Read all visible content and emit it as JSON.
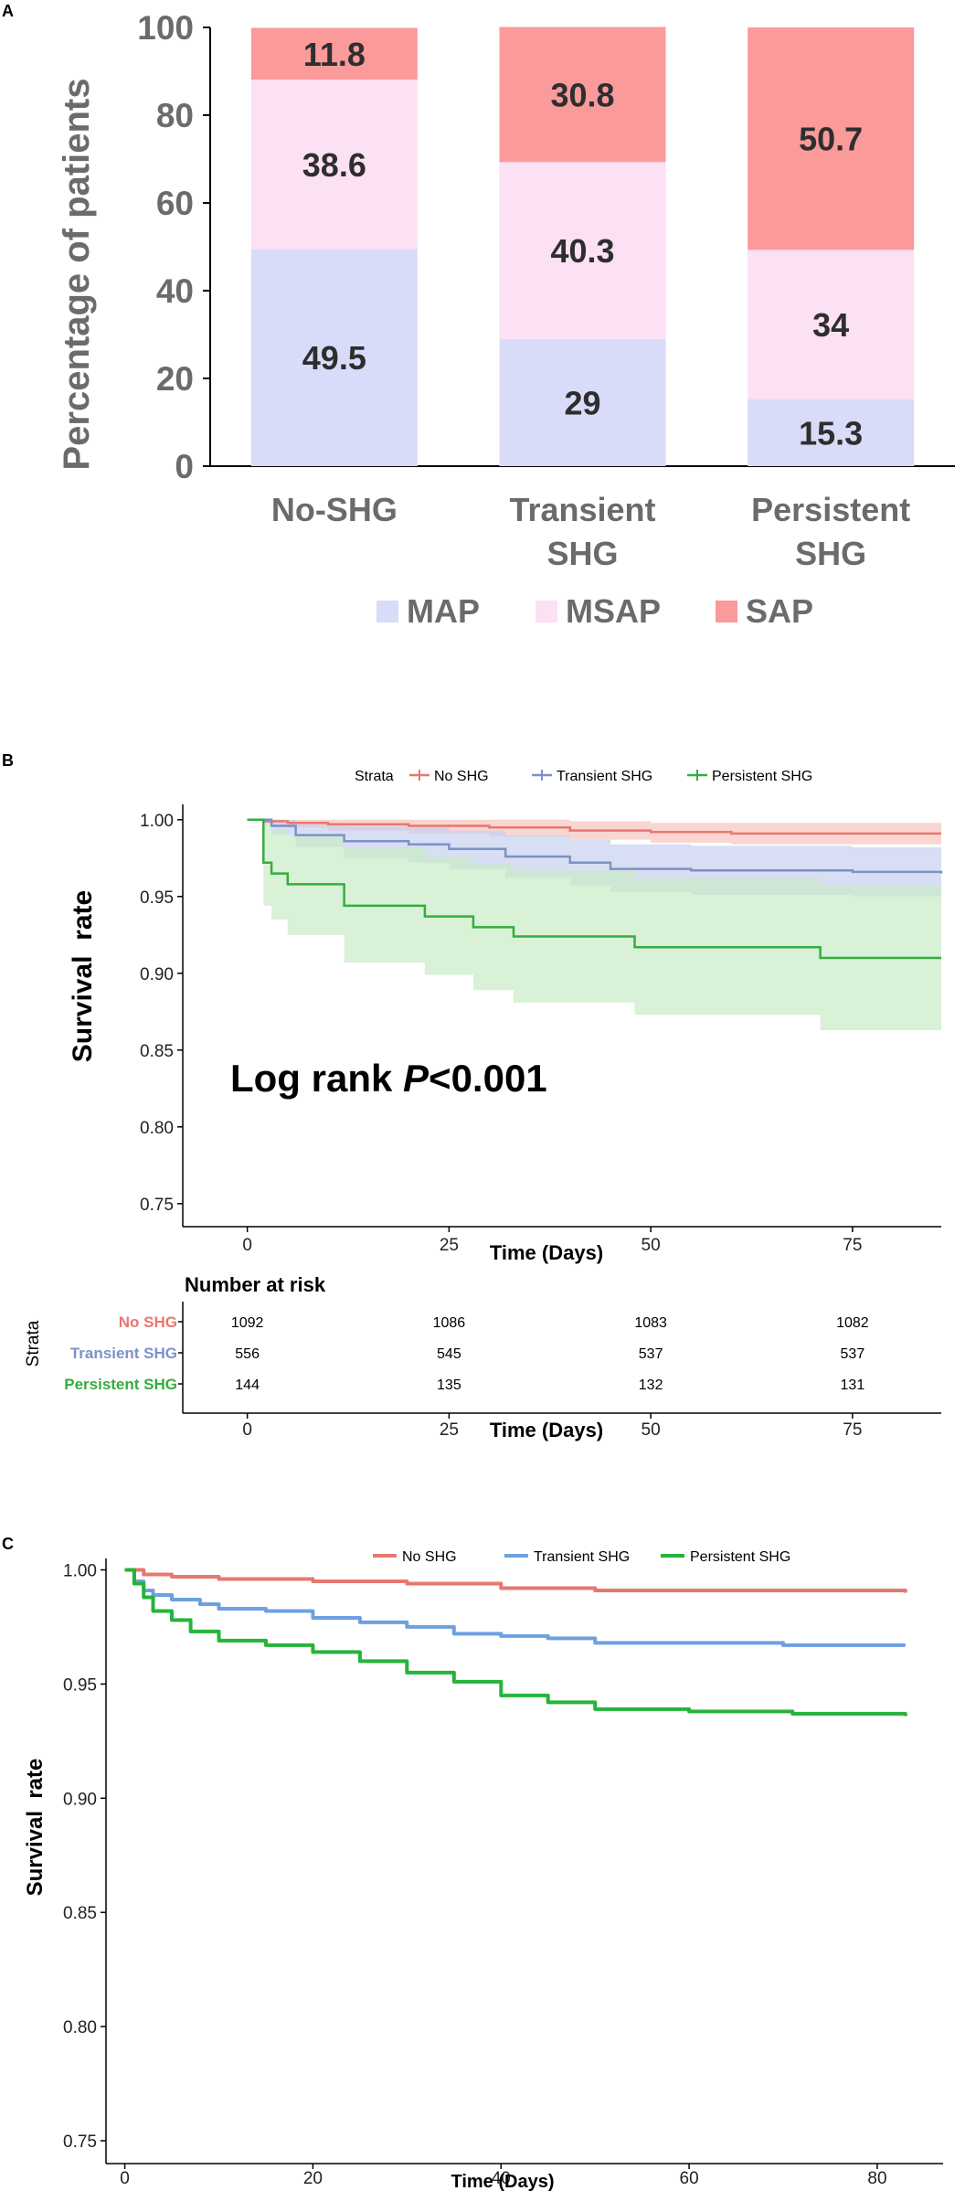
{
  "chart_data": [
    {
      "panel": "A",
      "type": "bar",
      "stacked": true,
      "categories": [
        [
          "No-SHG"
        ],
        [
          "Transient",
          "SHG"
        ],
        [
          "Persistent",
          "SHG"
        ]
      ],
      "series": [
        {
          "name": "MAP",
          "values": [
            49.5,
            29,
            15.3
          ],
          "labels": [
            "49.5",
            "29",
            "15.3"
          ],
          "color": "#d8dcf8"
        },
        {
          "name": "MSAP",
          "values": [
            38.6,
            40.3,
            34
          ],
          "labels": [
            "38.6",
            "40.3",
            "34"
          ],
          "color": "#fce0f4"
        },
        {
          "name": "SAP",
          "values": [
            11.8,
            30.8,
            50.7
          ],
          "labels": [
            "11.8",
            "30.8",
            "50.7"
          ],
          "color": "#fa9a9a"
        }
      ],
      "ylabel": "Percentage of patients",
      "yticks": [
        0,
        20,
        40,
        60,
        80,
        100
      ],
      "ylim": [
        0,
        100
      ],
      "legend_position": "bottom"
    },
    {
      "panel": "B",
      "type": "line",
      "subtype": "kaplan-meier",
      "legend_title": "Strata",
      "series": [
        {
          "name": "No SHG",
          "color": "#e8776f",
          "band_color": "#f6c4be",
          "x": [
            0,
            2,
            5,
            10,
            20,
            30,
            40,
            50,
            60,
            70,
            86
          ],
          "y": [
            1.0,
            0.999,
            0.998,
            0.997,
            0.996,
            0.995,
            0.993,
            0.992,
            0.991,
            0.991,
            0.991
          ],
          "lower": [
            1.0,
            0.997,
            0.995,
            0.993,
            0.991,
            0.989,
            0.987,
            0.985,
            0.984,
            0.984,
            0.984
          ],
          "upper": [
            1.0,
            1.0,
            1.0,
            1.0,
            1.0,
            1.0,
            0.999,
            0.998,
            0.998,
            0.998,
            0.998
          ]
        },
        {
          "name": "Transient SHG",
          "color": "#7b92c8",
          "band_color": "#c7d0ef",
          "x": [
            0,
            3,
            6,
            12,
            20,
            25,
            32,
            40,
            45,
            55,
            75,
            86
          ],
          "y": [
            1.0,
            0.996,
            0.99,
            0.986,
            0.984,
            0.981,
            0.976,
            0.972,
            0.968,
            0.967,
            0.966,
            0.965
          ],
          "lower": [
            1.0,
            0.99,
            0.982,
            0.975,
            0.972,
            0.968,
            0.962,
            0.957,
            0.953,
            0.951,
            0.95,
            0.949
          ],
          "upper": [
            1.0,
            1.0,
            0.998,
            0.996,
            0.995,
            0.993,
            0.99,
            0.987,
            0.984,
            0.983,
            0.982,
            0.981
          ]
        },
        {
          "name": "Persistent SHG",
          "color": "#34ae3c",
          "band_color": "#c9ebc6",
          "x": [
            0,
            2,
            3,
            5,
            12,
            22,
            28,
            33,
            48,
            71,
            86
          ],
          "y": [
            1.0,
            0.972,
            0.965,
            0.958,
            0.944,
            0.937,
            0.93,
            0.924,
            0.917,
            0.91,
            0.91
          ],
          "lower": [
            1.0,
            0.944,
            0.935,
            0.925,
            0.907,
            0.899,
            0.889,
            0.881,
            0.873,
            0.863,
            0.863
          ],
          "upper": [
            1.0,
            0.997,
            0.994,
            0.99,
            0.982,
            0.976,
            0.971,
            0.967,
            0.962,
            0.957,
            0.957
          ]
        }
      ],
      "xlabel": "Time (Days)",
      "ylabel": "Survival  rate",
      "xticks": [
        0,
        25,
        50,
        75
      ],
      "yticks": [
        0.75,
        0.8,
        0.85,
        0.9,
        0.95,
        1.0
      ],
      "ytick_labels": [
        "0.75",
        "0.80",
        "0.85",
        "0.90",
        "0.95",
        "1.00"
      ],
      "xlim": [
        -8,
        86
      ],
      "ylim": [
        0.735,
        1.01
      ],
      "annotation": {
        "prefix": "Log rank ",
        "italic": "P",
        "suffix": "<0.001"
      },
      "risk_table": {
        "title": "Number at risk",
        "row_axis_label": "Strata",
        "xlabel": "Time (Days)",
        "time_points": [
          0,
          25,
          50,
          75
        ],
        "rows": [
          {
            "name": "No SHG",
            "values": [
              "1092",
              "1086",
              "1083",
              "1082"
            ]
          },
          {
            "name": "Transient SHG",
            "values": [
              "556",
              "545",
              "537",
              "537"
            ]
          },
          {
            "name": "Persistent SHG",
            "values": [
              "144",
              "135",
              "132",
              "131"
            ]
          }
        ]
      }
    },
    {
      "panel": "C",
      "type": "line",
      "subtype": "survival",
      "series": [
        {
          "name": "No SHG",
          "color": "#e8776f",
          "x": [
            0,
            2,
            5,
            10,
            20,
            30,
            40,
            50,
            60,
            70,
            83
          ],
          "y": [
            1.0,
            0.998,
            0.997,
            0.996,
            0.995,
            0.994,
            0.992,
            0.991,
            0.991,
            0.991,
            0.99
          ]
        },
        {
          "name": "Transient SHG",
          "color": "#6ea0e0",
          "x": [
            0,
            1,
            2,
            3,
            5,
            8,
            10,
            15,
            20,
            25,
            30,
            35,
            40,
            45,
            50,
            60,
            70,
            83
          ],
          "y": [
            1.0,
            0.995,
            0.991,
            0.989,
            0.987,
            0.985,
            0.983,
            0.982,
            0.979,
            0.977,
            0.975,
            0.972,
            0.971,
            0.97,
            0.968,
            0.968,
            0.967,
            0.967
          ]
        },
        {
          "name": "Persistent SHG",
          "color": "#26b33a",
          "x": [
            0,
            1,
            2,
            3,
            5,
            7,
            10,
            15,
            20,
            25,
            30,
            35,
            40,
            45,
            50,
            60,
            70,
            71,
            83
          ],
          "y": [
            1.0,
            0.994,
            0.988,
            0.982,
            0.978,
            0.973,
            0.969,
            0.967,
            0.964,
            0.96,
            0.955,
            0.951,
            0.945,
            0.942,
            0.939,
            0.938,
            0.938,
            0.937,
            0.936
          ]
        }
      ],
      "xlabel": "Time (Days)",
      "ylabel": "Survival  rate",
      "xticks": [
        0,
        20,
        40,
        60,
        80
      ],
      "yticks": [
        0.75,
        0.8,
        0.85,
        0.9,
        0.95,
        1.0
      ],
      "ytick_labels": [
        "0.75",
        "0.80",
        "0.85",
        "0.90",
        "0.95",
        "1.00"
      ],
      "xlim": [
        -2,
        87
      ],
      "ylim": [
        0.74,
        1.005
      ],
      "legend_position": "top"
    }
  ],
  "panels": {
    "a": "A",
    "b": "B",
    "c": "C"
  }
}
